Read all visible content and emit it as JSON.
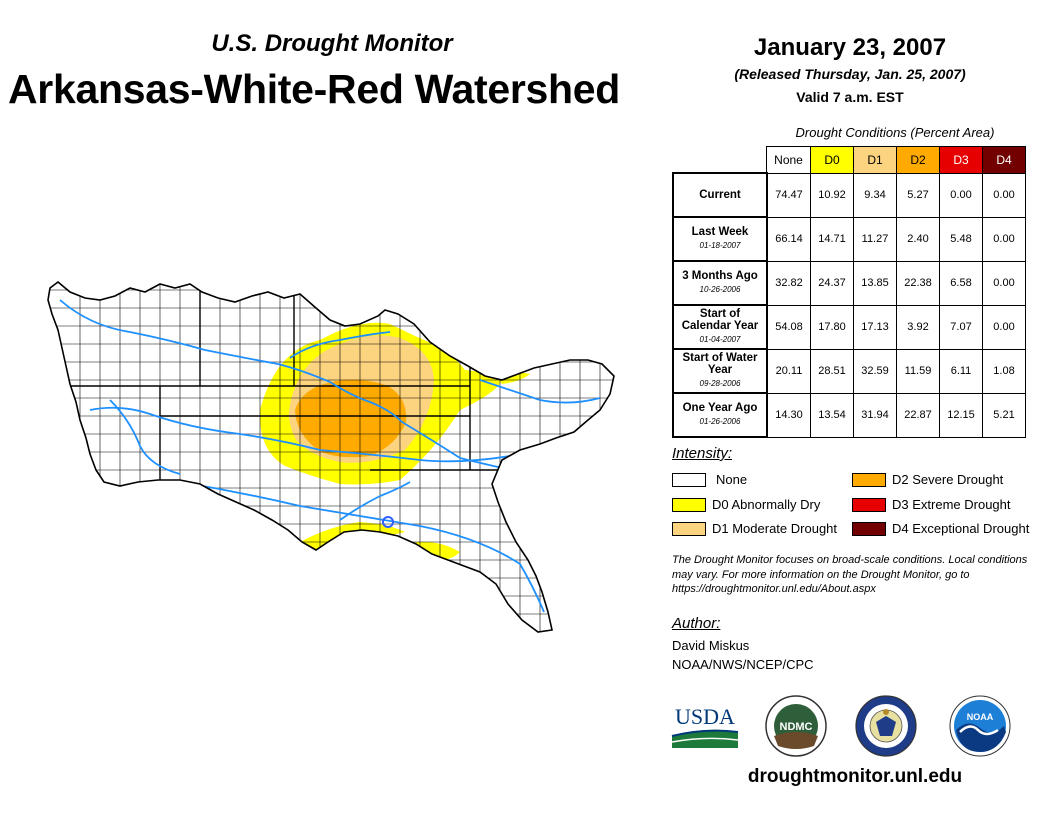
{
  "header": {
    "subtitle": "U.S. Drought Monitor",
    "title": "Arkansas-White-Red Watershed",
    "date": "January 23, 2007",
    "released": "(Released Thursday, Jan. 25, 2007)",
    "valid": "Valid 7 a.m. EST"
  },
  "conditions": {
    "title": "Drought Conditions (Percent Area)",
    "columns": [
      "None",
      "D0",
      "D1",
      "D2",
      "D3",
      "D4"
    ],
    "column_colors": [
      "#ffffff",
      "#ffff00",
      "#fcd37f",
      "#ffaa00",
      "#e60000",
      "#730000"
    ],
    "rows": [
      {
        "label": "Current",
        "date": "",
        "values": [
          "74.47",
          "10.92",
          "9.34",
          "5.27",
          "0.00",
          "0.00"
        ]
      },
      {
        "label": "Last Week",
        "date": "01-18-2007",
        "values": [
          "66.14",
          "14.71",
          "11.27",
          "2.40",
          "5.48",
          "0.00"
        ]
      },
      {
        "label": "3 Months Ago",
        "date": "10-26-2006",
        "values": [
          "32.82",
          "24.37",
          "13.85",
          "22.38",
          "6.58",
          "0.00"
        ]
      },
      {
        "label": "Start of Calendar Year",
        "date": "01-04-2007",
        "values": [
          "54.08",
          "17.80",
          "17.13",
          "3.92",
          "7.07",
          "0.00"
        ]
      },
      {
        "label": "Start of Water Year",
        "date": "09-28-2006",
        "values": [
          "20.11",
          "28.51",
          "32.59",
          "11.59",
          "6.11",
          "1.08"
        ]
      },
      {
        "label": "One Year Ago",
        "date": "01-26-2006",
        "values": [
          "14.30",
          "13.54",
          "31.94",
          "22.87",
          "12.15",
          "5.21"
        ]
      }
    ]
  },
  "legend": {
    "title": "Intensity:",
    "items": [
      {
        "label": "None",
        "color": "#ffffff"
      },
      {
        "label": "D0 Abnormally Dry",
        "color": "#ffff00"
      },
      {
        "label": "D1 Moderate Drought",
        "color": "#fcd37f"
      },
      {
        "label": "D2 Severe Drought",
        "color": "#ffaa00"
      },
      {
        "label": "D3 Extreme Drought",
        "color": "#e60000"
      },
      {
        "label": "D4 Exceptional Drought",
        "color": "#730000"
      }
    ]
  },
  "note": "The Drought Monitor focuses on broad-scale conditions. Local conditions may vary. For more information on the Drought Monitor, go to https://droughtmonitor.unl.edu/About.aspx",
  "author": {
    "label": "Author:",
    "name": "David Miskus",
    "org": "NOAA/NWS/NCEP/CPC"
  },
  "logos": [
    "USDA",
    "NDMC",
    "USDC",
    "NOAA"
  ],
  "url": "droughtmonitor.unl.edu"
}
